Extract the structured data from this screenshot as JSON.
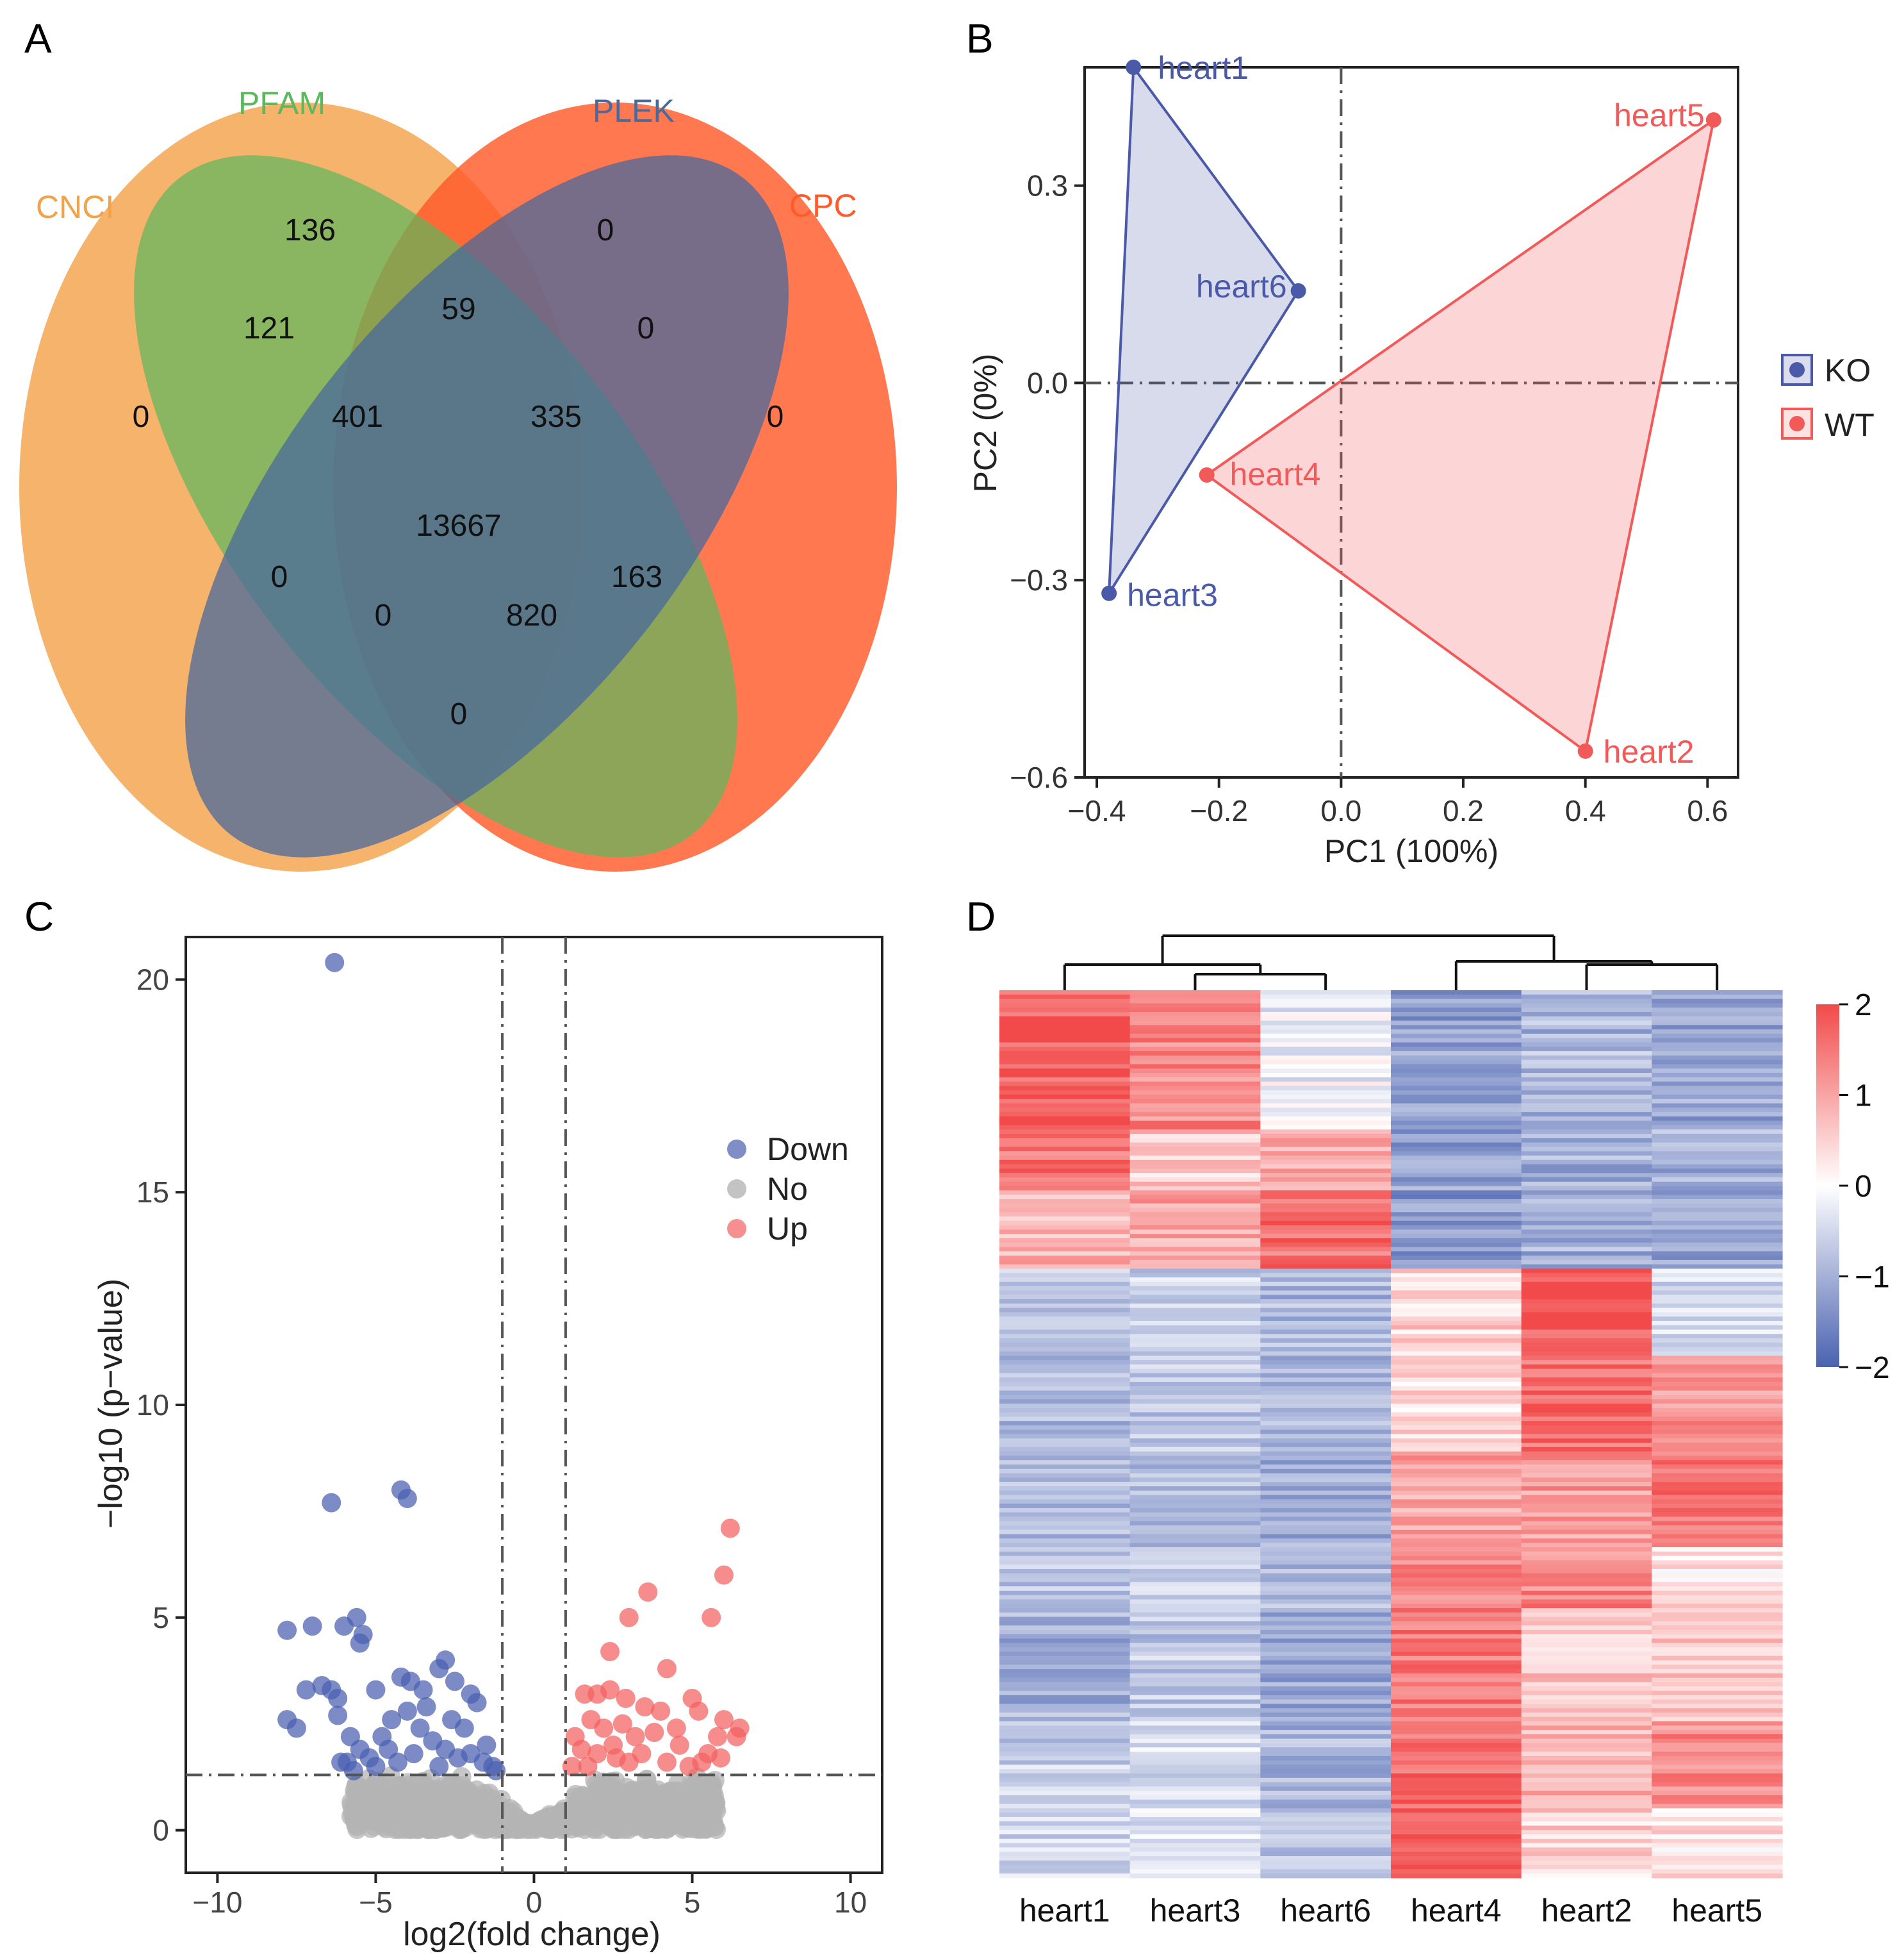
{
  "panels": {
    "A": "A",
    "B": "B",
    "C": "C",
    "D": "D"
  },
  "colors": {
    "cnci": "#f4a24a",
    "pfam": "#5cb85c",
    "plek": "#4a6a9c",
    "cpc": "#ff5a2a",
    "ko": "#4a5aa8",
    "wt": "#f25a5a",
    "down": "#4a5eb0",
    "up": "#f26060",
    "no": "#b4b4b4",
    "heat_low": "#4a62b0",
    "heat_mid": "#ffffff",
    "heat_high": "#f24a4a"
  },
  "chart_data": [
    {
      "type": "venn",
      "panel": "A",
      "sets": [
        "CNCI",
        "PFAM",
        "PLEK",
        "CPC"
      ],
      "regions": [
        {
          "sets": [
            "PFAM"
          ],
          "value": "136"
        },
        {
          "sets": [
            "PLEK"
          ],
          "value": "0"
        },
        {
          "sets": [
            "CNCI"
          ],
          "value": "0"
        },
        {
          "sets": [
            "CPC"
          ],
          "value": "0"
        },
        {
          "sets": [
            "CNCI",
            "PFAM"
          ],
          "value": "121"
        },
        {
          "sets": [
            "PFAM",
            "PLEK"
          ],
          "value": "59"
        },
        {
          "sets": [
            "PLEK",
            "CPC"
          ],
          "value": "0"
        },
        {
          "sets": [
            "CNCI",
            "PFAM",
            "PLEK"
          ],
          "value": "401"
        },
        {
          "sets": [
            "PFAM",
            "PLEK",
            "CPC"
          ],
          "value": "335"
        },
        {
          "sets": [
            "CNCI",
            "PFAM",
            "PLEK",
            "CPC"
          ],
          "value": "13667"
        },
        {
          "sets": [
            "CNCI",
            "PLEK"
          ],
          "value": "0"
        },
        {
          "sets": [
            "PFAM",
            "CPC"
          ],
          "value": "163"
        },
        {
          "sets": [
            "CNCI",
            "PLEK",
            "CPC"
          ],
          "value": "0"
        },
        {
          "sets": [
            "CNCI",
            "PFAM",
            "CPC"
          ],
          "value": "820"
        },
        {
          "sets": [
            "CNCI",
            "CPC"
          ],
          "value": "0"
        }
      ]
    },
    {
      "type": "scatter",
      "panel": "B",
      "xlabel": "PC1 (100%)",
      "ylabel": "PC2 (0%)",
      "xlim": [
        -0.42,
        0.65
      ],
      "ylim": [
        -0.6,
        0.48
      ],
      "xticks": [
        -0.4,
        -0.2,
        0.0,
        0.2,
        0.4,
        0.6
      ],
      "xtick_labels": [
        "−0.4",
        "−0.2",
        "0.0",
        "0.2",
        "0.4",
        "0.6"
      ],
      "yticks": [
        0.3,
        0.0,
        -0.3,
        -0.6
      ],
      "ytick_labels": [
        "0.3",
        "0.0",
        "−0.3",
        "−0.6"
      ],
      "legend": [
        "KO",
        "WT"
      ],
      "series": [
        {
          "name": "KO",
          "points": [
            {
              "label": "heart1",
              "x": -0.34,
              "y": 0.48
            },
            {
              "label": "heart6",
              "x": -0.07,
              "y": 0.14
            },
            {
              "label": "heart3",
              "x": -0.38,
              "y": -0.32
            }
          ]
        },
        {
          "name": "WT",
          "points": [
            {
              "label": "heart5",
              "x": 0.61,
              "y": 0.4
            },
            {
              "label": "heart4",
              "x": -0.22,
              "y": -0.14
            },
            {
              "label": "heart2",
              "x": 0.4,
              "y": -0.56
            }
          ]
        }
      ]
    },
    {
      "type": "scatter",
      "panel": "C",
      "xlabel": "log2(fold change)",
      "ylabel": "−log10 (p−value)",
      "xlim": [
        -11,
        11
      ],
      "ylim": [
        -1,
        21
      ],
      "xticks": [
        -10,
        -5,
        0,
        5,
        10
      ],
      "xtick_labels": [
        "−10",
        "−5",
        "0",
        "5",
        "10"
      ],
      "yticks": [
        0,
        5,
        10,
        15,
        20
      ],
      "ytick_labels": [
        "0",
        "5",
        "10",
        "15",
        "20"
      ],
      "vlines": [
        -1,
        1
      ],
      "hline": 1.3,
      "legend": [
        "Down",
        "No",
        "Up"
      ],
      "series": [
        {
          "name": "Down",
          "points": [
            [
              -6.3,
              20.4
            ],
            [
              -6.4,
              7.7
            ],
            [
              -4.2,
              8.0
            ],
            [
              -4.0,
              7.8
            ],
            [
              -7.8,
              4.7
            ],
            [
              -7.0,
              4.8
            ],
            [
              -6.0,
              4.8
            ],
            [
              -5.6,
              5.0
            ],
            [
              -5.4,
              4.6
            ],
            [
              -5.5,
              4.4
            ],
            [
              -7.2,
              3.3
            ],
            [
              -6.7,
              3.4
            ],
            [
              -6.4,
              3.3
            ],
            [
              -6.2,
              3.1
            ],
            [
              -5.0,
              3.3
            ],
            [
              -4.2,
              3.6
            ],
            [
              -3.9,
              3.5
            ],
            [
              -3.5,
              3.3
            ],
            [
              -3.0,
              3.8
            ],
            [
              -2.8,
              4.0
            ],
            [
              -2.5,
              3.5
            ],
            [
              -2.0,
              3.2
            ],
            [
              -1.8,
              3.0
            ],
            [
              -7.8,
              2.6
            ],
            [
              -7.5,
              2.4
            ],
            [
              -6.2,
              2.7
            ],
            [
              -5.8,
              2.2
            ],
            [
              -5.5,
              1.9
            ],
            [
              -5.9,
              1.6
            ],
            [
              -5.2,
              1.7
            ],
            [
              -4.8,
              2.2
            ],
            [
              -4.5,
              2.6
            ],
            [
              -4.0,
              2.8
            ],
            [
              -3.6,
              2.4
            ],
            [
              -3.2,
              2.1
            ],
            [
              -2.8,
              1.9
            ],
            [
              -2.4,
              1.7
            ],
            [
              -2.0,
              1.8
            ],
            [
              -1.6,
              1.6
            ],
            [
              -1.3,
              1.5
            ],
            [
              -3.8,
              1.8
            ],
            [
              -4.3,
              1.6
            ],
            [
              -5.0,
              1.5
            ],
            [
              -2.2,
              2.4
            ],
            [
              -3.4,
              2.9
            ],
            [
              -1.5,
              2.0
            ],
            [
              -4.6,
              1.9
            ],
            [
              -2.6,
              2.6
            ],
            [
              -1.2,
              1.4
            ],
            [
              -3.0,
              1.5
            ],
            [
              -5.7,
              1.4
            ],
            [
              -6.1,
              1.6
            ]
          ]
        },
        {
          "name": "Up",
          "points": [
            [
              6.2,
              7.1
            ],
            [
              6.0,
              6.0
            ],
            [
              3.6,
              5.6
            ],
            [
              3.0,
              5.0
            ],
            [
              5.6,
              5.0
            ],
            [
              2.4,
              4.2
            ],
            [
              4.2,
              3.8
            ],
            [
              1.6,
              3.2
            ],
            [
              2.0,
              3.2
            ],
            [
              2.4,
              3.3
            ],
            [
              2.9,
              3.1
            ],
            [
              3.5,
              2.9
            ],
            [
              4.0,
              2.8
            ],
            [
              5.0,
              3.1
            ],
            [
              5.2,
              2.8
            ],
            [
              1.8,
              2.6
            ],
            [
              2.2,
              2.4
            ],
            [
              2.8,
              2.5
            ],
            [
              3.2,
              2.2
            ],
            [
              3.8,
              2.3
            ],
            [
              4.6,
              2.0
            ],
            [
              1.5,
              1.9
            ],
            [
              2.0,
              1.8
            ],
            [
              2.6,
              1.7
            ],
            [
              3.4,
              1.8
            ],
            [
              4.2,
              1.6
            ],
            [
              4.9,
              1.5
            ],
            [
              5.5,
              1.8
            ],
            [
              5.8,
              2.2
            ],
            [
              6.0,
              2.6
            ],
            [
              6.5,
              2.4
            ],
            [
              6.4,
              2.2
            ],
            [
              5.3,
              1.6
            ],
            [
              1.2,
              1.5
            ],
            [
              1.7,
              1.5
            ],
            [
              3.0,
              1.6
            ],
            [
              5.9,
              1.7
            ],
            [
              4.5,
              2.4
            ],
            [
              2.5,
              2.0
            ],
            [
              1.3,
              2.2
            ]
          ]
        },
        {
          "name": "No",
          "range": "|log2FC| up to about 5.8 with −log10(p) below 1.3"
        }
      ]
    },
    {
      "type": "heatmap",
      "panel": "D",
      "columns": [
        "heart1",
        "heart3",
        "heart6",
        "heart4",
        "heart2",
        "heart5"
      ],
      "colorbar_ticks": [
        2,
        1,
        0,
        -1,
        -2
      ],
      "colorbar_labels": [
        "2",
        "1",
        "0",
        "−1",
        "−2"
      ],
      "row_blocks": [
        {
          "rows": 32,
          "values": [
            1.8,
            1.3,
            -0.2,
            -1.2,
            -0.9,
            -1.1
          ]
        },
        {
          "rows": 14,
          "values": [
            1.5,
            0.6,
            0.9,
            -1.2,
            -1.0,
            -1.0
          ]
        },
        {
          "rows": 18,
          "values": [
            0.8,
            1.0,
            1.6,
            -1.3,
            -1.0,
            -1.1
          ]
        },
        {
          "rows": 20,
          "values": [
            -0.7,
            -0.6,
            -0.9,
            0.5,
            1.8,
            -0.5
          ]
        },
        {
          "rows": 22,
          "values": [
            -0.9,
            -0.7,
            -1.0,
            0.4,
            1.6,
            1.2
          ]
        },
        {
          "rows": 22,
          "values": [
            -0.8,
            -0.8,
            -1.0,
            1.0,
            1.1,
            1.6
          ]
        },
        {
          "rows": 14,
          "values": [
            -0.8,
            -0.7,
            -0.9,
            1.3,
            1.3,
            0.3
          ]
        },
        {
          "rows": 26,
          "values": [
            -1.0,
            -0.7,
            -1.1,
            1.5,
            0.6,
            0.6
          ]
        },
        {
          "rows": 20,
          "values": [
            -0.6,
            -0.5,
            -0.9,
            1.6,
            0.8,
            1.3
          ]
        },
        {
          "rows": 16,
          "values": [
            -0.5,
            -0.3,
            -0.8,
            1.8,
            0.5,
            0.3
          ]
        }
      ],
      "dendrogram": "columns cluster as ((heart1,(heart3,heart6)),(heart4,(heart2,heart5)))"
    }
  ]
}
